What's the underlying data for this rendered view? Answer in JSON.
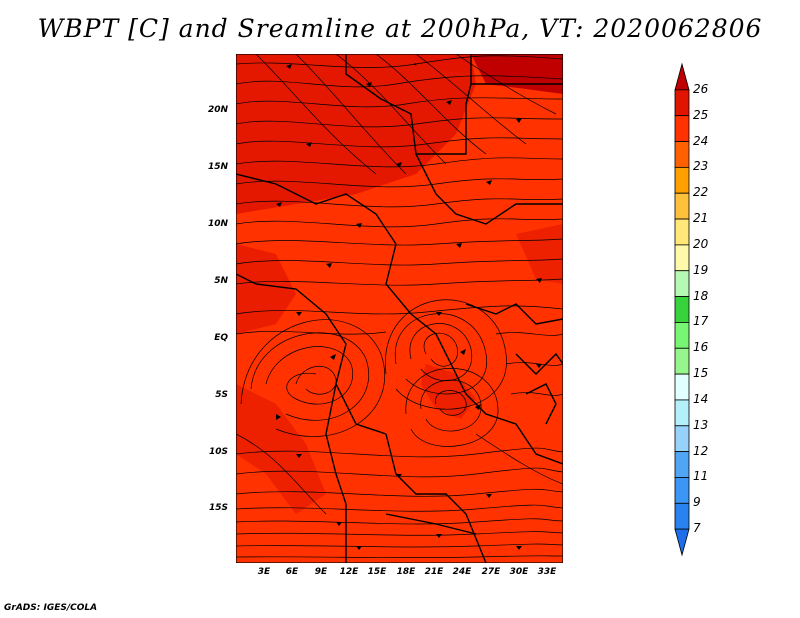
{
  "title": "WBPT [C] and Sreamline at 200hPa, VT: 2020062806",
  "footer": "GrADS: IGES/COLA",
  "map": {
    "lat_labels": [
      "20N",
      "15N",
      "10N",
      "5N",
      "EQ",
      "5S",
      "10S",
      "15S"
    ],
    "lon_labels": [
      "3E",
      "6E",
      "9E",
      "12E",
      "15E",
      "18E",
      "21E",
      "24E",
      "27E",
      "30E",
      "33E"
    ]
  },
  "colorbar": {
    "levels": [
      "7",
      "9",
      "11",
      "12",
      "13",
      "14",
      "15",
      "16",
      "17",
      "18",
      "19",
      "20",
      "21",
      "22",
      "23",
      "24",
      "25",
      "26"
    ],
    "colors": [
      "#1e6eeb",
      "#2882f0",
      "#3c96f5",
      "#50a5f5",
      "#96d2fa",
      "#b4f0fa",
      "#e1ffff",
      "#96f58c",
      "#78f573",
      "#37d23c",
      "#b4fab4",
      "#fffaaa",
      "#ffe878",
      "#ffc03c",
      "#ffa000",
      "#ff6000",
      "#ff3200",
      "#e11400",
      "#c00000"
    ]
  }
}
